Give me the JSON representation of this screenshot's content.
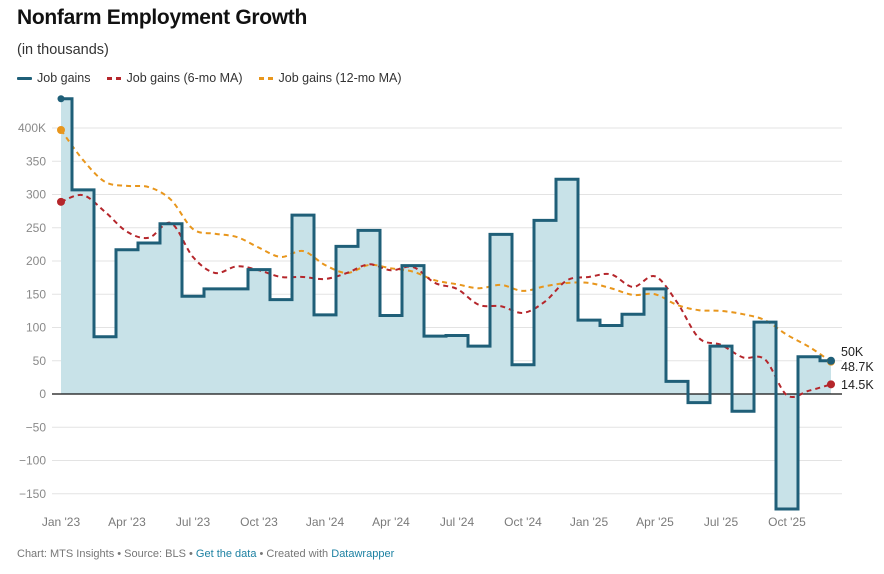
{
  "header": {
    "title": "Nonfarm Employment Growth",
    "subtitle": "(in thousands)"
  },
  "legend": [
    {
      "label": "Job gains",
      "color": "#1f5f78",
      "style": "solid"
    },
    {
      "label": "Job gains (6-mo MA)",
      "color": "#b5262b",
      "style": "dashed"
    },
    {
      "label": "Job gains (12-mo MA)",
      "color": "#e8961c",
      "style": "dashed"
    }
  ],
  "footer": {
    "chart_credit": "Chart: MTS Insights",
    "separator": " • ",
    "source": "Source: BLS",
    "get_data_link": "Get the data",
    "created_with": "Created with",
    "datawrapper_link": "Datawrapper"
  },
  "chart_data": {
    "type": "area",
    "title": "Nonfarm Employment Growth",
    "subtitle": "(in thousands)",
    "xlabel": "",
    "ylabel": "",
    "ylim": [
      -175,
      450
    ],
    "yticks": [
      400,
      350,
      300,
      250,
      200,
      150,
      100,
      50,
      0,
      -50,
      -100,
      -150
    ],
    "ytick_labels": [
      "400K",
      "350",
      "300",
      "250",
      "200",
      "150",
      "100",
      "50",
      "0",
      "-50",
      "-100",
      "-150"
    ],
    "x": [
      "Jan '23",
      "Feb '23",
      "Mar '23",
      "Apr '23",
      "May '23",
      "Jun '23",
      "Jul '23",
      "Aug '23",
      "Sep '23",
      "Oct '23",
      "Nov '23",
      "Dec '23",
      "Jan '24",
      "Feb '24",
      "Mar '24",
      "Apr '24",
      "May '24",
      "Jun '24",
      "Jul '24",
      "Aug '24",
      "Sep '24",
      "Oct '24",
      "Nov '24",
      "Dec '24",
      "Jan '25",
      "Feb '25",
      "Mar '25",
      "Apr '25",
      "May '25",
      "Jun '25",
      "Jul '25",
      "Aug '25",
      "Sep '25",
      "Oct '25",
      "Nov '25",
      "Dec '25"
    ],
    "xticks": [
      "Jan '23",
      "Apr '23",
      "Jul '23",
      "Oct '23",
      "Jan '24",
      "Apr '24",
      "Jul '24",
      "Oct '24",
      "Jan '25",
      "Apr '25",
      "Jul '25",
      "Oct '25"
    ],
    "xtick_indices": [
      0,
      3,
      6,
      9,
      12,
      15,
      18,
      21,
      24,
      27,
      30,
      33
    ],
    "grid": true,
    "legend_position": "top-left",
    "series": [
      {
        "name": "Job gains",
        "style": "step-area",
        "color": "#1f5f78",
        "fill": "#c8e2e8",
        "values": [
          444,
          307,
          86,
          217,
          227,
          256,
          147,
          158,
          158,
          187,
          142,
          269,
          119,
          222,
          246,
          118,
          193,
          87,
          88,
          72,
          240,
          44,
          261,
          323,
          111,
          103,
          120,
          158,
          19,
          -13,
          72,
          -26,
          108,
          -173,
          56,
          50
        ]
      },
      {
        "name": "Job gains (6-mo MA)",
        "style": "dashed",
        "color": "#b5262b",
        "values": [
          289,
          299,
          274,
          244,
          235,
          257,
          206,
          182,
          192,
          186,
          176,
          176,
          173,
          182,
          195,
          186,
          191,
          167,
          158,
          134,
          132,
          122,
          139,
          171,
          176,
          180,
          161,
          177,
          138,
          84,
          74,
          55,
          52,
          -2,
          5,
          14.5
        ]
      },
      {
        "name": "Job gains (12-mo MA)",
        "style": "dashed",
        "color": "#e8961c",
        "values": [
          397,
          352,
          319,
          313,
          311,
          292,
          248,
          241,
          236,
          220,
          206,
          215,
          194,
          182,
          194,
          189,
          184,
          171,
          165,
          159,
          164,
          155,
          162,
          167,
          167,
          159,
          149,
          150,
          134,
          126,
          125,
          120,
          111,
          89,
          71,
          48.7
        ]
      }
    ],
    "end_labels": [
      "50K",
      "48.7K",
      "14.5K"
    ]
  }
}
